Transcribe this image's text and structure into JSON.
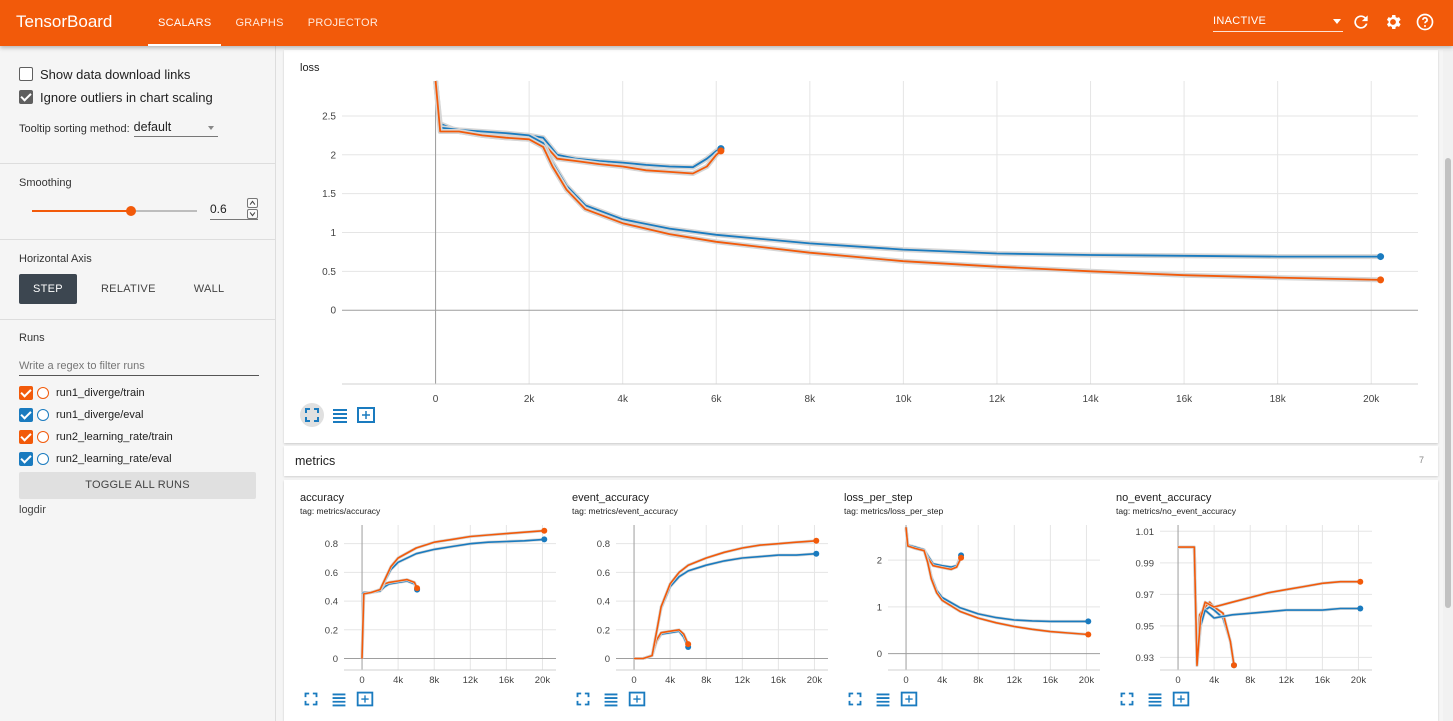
{
  "header": {
    "brand": "TensorBoard",
    "tabs": [
      {
        "label": "SCALARS",
        "active": true
      },
      {
        "label": "GRAPHS",
        "active": false
      },
      {
        "label": "PROJECTOR",
        "active": false
      }
    ],
    "mode_select": "INACTIVE",
    "icons": [
      "refresh-icon",
      "settings-icon",
      "help-icon"
    ]
  },
  "sidebar": {
    "options": [
      {
        "label": "Show data download links",
        "checked": false
      },
      {
        "label": "Ignore outliers in chart scaling",
        "checked": true
      }
    ],
    "tooltip_label": "Tooltip sorting method:",
    "tooltip_value": "default",
    "smoothing_label": "Smoothing",
    "smoothing_value": "0.6",
    "smoothing_fraction": 0.6,
    "axis_label": "Horizontal Axis",
    "axis_buttons": [
      "STEP",
      "RELATIVE",
      "WALL"
    ],
    "axis_active": "STEP",
    "runs_label": "Runs",
    "runs_filter_placeholder": "Write a regex to filter runs",
    "runs": [
      {
        "name": "run1_diverge/train",
        "color": "#f25a0a"
      },
      {
        "name": "run1_diverge/eval",
        "color": "#1a7bbf"
      },
      {
        "name": "run2_learning_rate/train",
        "color": "#f25a0a"
      },
      {
        "name": "run2_learning_rate/eval",
        "color": "#1a7bbf"
      }
    ],
    "toggle_all": "TOGGLE ALL RUNS",
    "logdir": "logdir"
  },
  "colors": {
    "accent": "#f25a0a",
    "train": "#f25a0a",
    "eval": "#1a7bbf"
  },
  "metrics_section": {
    "title": "metrics",
    "count": "7"
  },
  "chart_data": [
    {
      "id": "loss",
      "type": "line",
      "title": "loss",
      "subtitle": "",
      "xlabel": "",
      "ylabel": "",
      "xlim": [
        -2000,
        21000
      ],
      "ylim": [
        -0.95,
        2.95
      ],
      "xticks": [
        0,
        2000,
        4000,
        6000,
        8000,
        10000,
        12000,
        14000,
        16000,
        18000,
        20000
      ],
      "xtick_labels": [
        "0",
        "2k",
        "4k",
        "6k",
        "8k",
        "10k",
        "12k",
        "14k",
        "16k",
        "18k",
        "20k"
      ],
      "yticks": [
        0,
        0.5,
        1,
        1.5,
        2,
        2.5
      ],
      "ytick_labels": [
        "0",
        "0.5",
        "1",
        "1.5",
        "2",
        "2.5"
      ],
      "grid": true,
      "series": [
        {
          "color": "#1a7bbf",
          "x": [
            0,
            100,
            500,
            1000,
            1500,
            2000,
            2300,
            2600,
            3000,
            3500,
            4000,
            4500,
            5000,
            5500,
            5800,
            6000,
            6100
          ],
          "y": [
            2.95,
            2.4,
            2.3,
            2.28,
            2.27,
            2.25,
            2.22,
            2.0,
            1.95,
            1.92,
            1.9,
            1.87,
            1.85,
            1.84,
            1.95,
            2.05,
            2.08
          ]
        },
        {
          "color": "#f25a0a",
          "x": [
            0,
            100,
            500,
            1000,
            1500,
            2000,
            2300,
            2600,
            3000,
            3500,
            4000,
            4500,
            5000,
            5500,
            5800,
            6000,
            6100
          ],
          "y": [
            2.95,
            2.35,
            2.3,
            2.25,
            2.22,
            2.2,
            2.15,
            1.95,
            1.92,
            1.88,
            1.85,
            1.8,
            1.78,
            1.76,
            1.85,
            2.0,
            2.05
          ]
        },
        {
          "color": "#1a7bbf",
          "x": [
            0,
            100,
            500,
            1000,
            1500,
            2000,
            2300,
            2500,
            2800,
            3200,
            4000,
            5000,
            6000,
            8000,
            10000,
            12000,
            14000,
            16000,
            18000,
            20200
          ],
          "y": [
            2.95,
            2.35,
            2.32,
            2.3,
            2.28,
            2.25,
            2.15,
            1.9,
            1.6,
            1.35,
            1.17,
            1.05,
            0.97,
            0.86,
            0.78,
            0.73,
            0.71,
            0.7,
            0.69,
            0.69
          ]
        },
        {
          "color": "#f25a0a",
          "x": [
            0,
            100,
            500,
            1000,
            1500,
            2000,
            2300,
            2500,
            2800,
            3200,
            4000,
            5000,
            6000,
            8000,
            10000,
            12000,
            14000,
            16000,
            18000,
            20200
          ],
          "y": [
            2.95,
            2.3,
            2.3,
            2.25,
            2.22,
            2.2,
            2.1,
            1.85,
            1.55,
            1.3,
            1.12,
            0.98,
            0.88,
            0.74,
            0.63,
            0.56,
            0.5,
            0.45,
            0.42,
            0.39
          ]
        }
      ]
    },
    {
      "id": "accuracy",
      "type": "line",
      "title": "accuracy",
      "subtitle": "tag: metrics/accuracy",
      "xlim": [
        -2000,
        21500
      ],
      "ylim": [
        -0.08,
        0.93
      ],
      "xticks": [
        0,
        4000,
        8000,
        12000,
        16000,
        20000
      ],
      "xtick_labels": [
        "0",
        "4k",
        "8k",
        "12k",
        "16k",
        "20k"
      ],
      "yticks": [
        0,
        0.2,
        0.4,
        0.6,
        0.8
      ],
      "ytick_labels": [
        "0",
        "0.2",
        "0.4",
        "0.6",
        "0.8"
      ],
      "grid": true,
      "series": [
        {
          "color": "#1a7bbf",
          "x": [
            0,
            200,
            1000,
            2000,
            2500,
            3000,
            4000,
            5000,
            5800,
            6100
          ],
          "y": [
            0.45,
            0.46,
            0.46,
            0.47,
            0.5,
            0.52,
            0.53,
            0.54,
            0.52,
            0.48
          ]
        },
        {
          "color": "#f25a0a",
          "x": [
            0,
            200,
            1000,
            2000,
            2500,
            3000,
            4000,
            5000,
            5800,
            6100
          ],
          "y": [
            0.0,
            0.45,
            0.46,
            0.48,
            0.52,
            0.53,
            0.54,
            0.55,
            0.53,
            0.49
          ]
        },
        {
          "color": "#1a7bbf",
          "x": [
            0,
            200,
            1000,
            2000,
            2600,
            3200,
            4000,
            6000,
            8000,
            10000,
            12000,
            14000,
            16000,
            18000,
            20200
          ],
          "y": [
            0.45,
            0.46,
            0.46,
            0.47,
            0.55,
            0.62,
            0.67,
            0.73,
            0.76,
            0.78,
            0.8,
            0.81,
            0.815,
            0.82,
            0.83
          ]
        },
        {
          "color": "#f25a0a",
          "x": [
            0,
            200,
            1000,
            2000,
            2600,
            3200,
            4000,
            6000,
            8000,
            10000,
            12000,
            14000,
            16000,
            18000,
            20200
          ],
          "y": [
            0.0,
            0.45,
            0.46,
            0.48,
            0.56,
            0.64,
            0.7,
            0.77,
            0.81,
            0.83,
            0.85,
            0.86,
            0.87,
            0.88,
            0.89
          ]
        }
      ]
    },
    {
      "id": "event_accuracy",
      "type": "line",
      "title": "event_accuracy",
      "subtitle": "tag: metrics/event_accuracy",
      "xlim": [
        -2000,
        21500
      ],
      "ylim": [
        -0.08,
        0.93
      ],
      "xticks": [
        0,
        4000,
        8000,
        12000,
        16000,
        20000
      ],
      "xtick_labels": [
        "0",
        "4k",
        "8k",
        "12k",
        "16k",
        "20k"
      ],
      "yticks": [
        0,
        0.2,
        0.4,
        0.6,
        0.8
      ],
      "ytick_labels": [
        "0",
        "0.2",
        "0.4",
        "0.6",
        "0.8"
      ],
      "grid": true,
      "series": [
        {
          "color": "#1a7bbf",
          "x": [
            0,
            1000,
            2000,
            2500,
            3000,
            4000,
            5000,
            5500,
            6000
          ],
          "y": [
            0.0,
            0.0,
            0.02,
            0.12,
            0.17,
            0.18,
            0.19,
            0.15,
            0.08
          ]
        },
        {
          "color": "#f25a0a",
          "x": [
            0,
            1000,
            2000,
            2500,
            3000,
            4000,
            5000,
            5500,
            6000
          ],
          "y": [
            0.0,
            0.0,
            0.02,
            0.13,
            0.18,
            0.19,
            0.2,
            0.17,
            0.1
          ]
        },
        {
          "color": "#1a7bbf",
          "x": [
            0,
            1000,
            2000,
            2600,
            3000,
            4000,
            5000,
            6000,
            8000,
            10000,
            12000,
            14000,
            16000,
            18000,
            20200
          ],
          "y": [
            0.0,
            0.0,
            0.02,
            0.22,
            0.35,
            0.5,
            0.57,
            0.61,
            0.65,
            0.68,
            0.7,
            0.71,
            0.72,
            0.72,
            0.73
          ]
        },
        {
          "color": "#f25a0a",
          "x": [
            0,
            1000,
            2000,
            2600,
            3000,
            4000,
            5000,
            6000,
            8000,
            10000,
            12000,
            14000,
            16000,
            18000,
            20200
          ],
          "y": [
            0.0,
            0.0,
            0.02,
            0.22,
            0.36,
            0.52,
            0.6,
            0.65,
            0.7,
            0.74,
            0.77,
            0.79,
            0.8,
            0.81,
            0.82
          ]
        }
      ]
    },
    {
      "id": "loss_per_step",
      "type": "line",
      "title": "loss_per_step",
      "subtitle": "tag: metrics/loss_per_step",
      "xlim": [
        -2000,
        21500
      ],
      "ylim": [
        -0.35,
        2.75
      ],
      "xticks": [
        0,
        4000,
        8000,
        12000,
        16000,
        20000
      ],
      "xtick_labels": [
        "0",
        "4k",
        "8k",
        "12k",
        "16k",
        "20k"
      ],
      "yticks": [
        0,
        1,
        2
      ],
      "ytick_labels": [
        "0",
        "1",
        "2"
      ],
      "grid": true,
      "series": [
        {
          "color": "#1a7bbf",
          "x": [
            0,
            200,
            1000,
            2000,
            2400,
            3000,
            4000,
            5000,
            5600,
            6100
          ],
          "y": [
            2.7,
            2.32,
            2.28,
            2.22,
            2.1,
            1.92,
            1.88,
            1.85,
            1.88,
            2.1
          ]
        },
        {
          "color": "#f25a0a",
          "x": [
            0,
            200,
            1000,
            2000,
            2400,
            3000,
            4000,
            5000,
            5600,
            6100
          ],
          "y": [
            2.7,
            2.3,
            2.25,
            2.2,
            2.05,
            1.88,
            1.84,
            1.8,
            1.85,
            2.05
          ]
        },
        {
          "color": "#1a7bbf",
          "x": [
            0,
            200,
            1000,
            2000,
            2400,
            2800,
            3400,
            4000,
            6000,
            8000,
            10000,
            12000,
            14000,
            16000,
            18000,
            20200
          ],
          "y": [
            2.7,
            2.32,
            2.28,
            2.22,
            2.0,
            1.65,
            1.35,
            1.2,
            0.98,
            0.85,
            0.77,
            0.72,
            0.7,
            0.69,
            0.69,
            0.69
          ]
        },
        {
          "color": "#f25a0a",
          "x": [
            0,
            200,
            1000,
            2000,
            2400,
            2800,
            3400,
            4000,
            6000,
            8000,
            10000,
            12000,
            14000,
            16000,
            18000,
            20200
          ],
          "y": [
            2.7,
            2.3,
            2.25,
            2.2,
            1.95,
            1.6,
            1.3,
            1.14,
            0.9,
            0.76,
            0.66,
            0.58,
            0.52,
            0.47,
            0.44,
            0.41
          ]
        }
      ]
    },
    {
      "id": "no_event_accuracy",
      "type": "line",
      "title": "no_event_accuracy",
      "subtitle": "tag: metrics/no_event_accuracy",
      "xlim": [
        -2000,
        21500
      ],
      "ylim": [
        0.922,
        1.014
      ],
      "xticks": [
        0,
        4000,
        8000,
        12000,
        16000,
        20000
      ],
      "xtick_labels": [
        "0",
        "4k",
        "8k",
        "12k",
        "16k",
        "20k"
      ],
      "yticks": [
        0.93,
        0.95,
        0.97,
        0.99,
        1.01
      ],
      "ytick_labels": [
        "0.93",
        "0.95",
        "0.97",
        "0.99",
        "1.01"
      ],
      "grid": true,
      "series": [
        {
          "color": "#1a7bbf",
          "x": [
            0,
            200,
            1000,
            1800,
            2100,
            2400,
            3000,
            3500,
            4000,
            5000,
            5800,
            6200
          ],
          "y": [
            1.0,
            1.0,
            1.0,
            1.0,
            0.925,
            0.955,
            0.96,
            0.962,
            0.96,
            0.955,
            0.94,
            0.925
          ]
        },
        {
          "color": "#f25a0a",
          "x": [
            0,
            200,
            1000,
            1800,
            2100,
            2400,
            3000,
            3500,
            4000,
            5000,
            5800,
            6200
          ],
          "y": [
            1.0,
            1.0,
            1.0,
            1.0,
            0.925,
            0.957,
            0.962,
            0.965,
            0.962,
            0.958,
            0.94,
            0.925
          ]
        },
        {
          "color": "#1a7bbf",
          "x": [
            0,
            200,
            1000,
            1800,
            2100,
            2500,
            3000,
            4000,
            6000,
            8000,
            10000,
            12000,
            14000,
            16000,
            18000,
            20200
          ],
          "y": [
            1.0,
            1.0,
            1.0,
            1.0,
            0.925,
            0.95,
            0.96,
            0.955,
            0.957,
            0.958,
            0.959,
            0.96,
            0.96,
            0.96,
            0.961,
            0.961
          ]
        },
        {
          "color": "#f25a0a",
          "x": [
            0,
            200,
            1000,
            1800,
            2100,
            2500,
            3000,
            4000,
            6000,
            8000,
            10000,
            12000,
            14000,
            16000,
            18000,
            20200
          ],
          "y": [
            1.0,
            1.0,
            1.0,
            1.0,
            0.925,
            0.955,
            0.965,
            0.962,
            0.965,
            0.968,
            0.971,
            0.973,
            0.975,
            0.977,
            0.978,
            0.978
          ]
        }
      ]
    }
  ]
}
